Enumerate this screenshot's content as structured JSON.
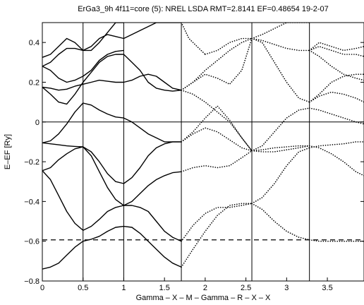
{
  "chart_data": {
    "type": "line",
    "title": "ErGa3_9h 4f11=core (5): NREL LSDA RMT=2.8141  EF=0.48654  19-2-07",
    "xlabel": "Gamma – X – M – Gamma – R – X – X",
    "ylabel": "E–EF [Ry]",
    "xlim": [
      0,
      3.95
    ],
    "ylim": [
      -0.8,
      0.5
    ],
    "xticks": [
      0,
      0.5,
      1,
      1.5,
      2,
      2.5,
      3,
      3.5
    ],
    "xtick_labels": [
      "0",
      "0.5",
      "1",
      "1.5",
      "2",
      "2.5",
      "3",
      "3.5"
    ],
    "yticks": [
      -0.8,
      -0.6,
      -0.4,
      -0.2,
      0,
      0.2,
      0.4
    ],
    "ytick_labels": [
      "−0.8",
      "−0.6",
      "−0.4",
      "−0.2",
      "0",
      "0.2",
      "0.4"
    ],
    "symmetry_lines_x": [
      0.5,
      1.0,
      1.707,
      2.573,
      3.28
    ],
    "fermi_level_y": 0,
    "dashed_level_y": -0.593,
    "grid": false,
    "line_color": "#000000",
    "series": [
      {
        "style": "solid",
        "x": [
          0,
          0.1,
          0.2,
          0.3,
          0.4,
          0.5,
          0.6,
          0.7,
          0.8,
          0.9,
          1.0
        ],
        "values": [
          -0.74,
          -0.73,
          -0.71,
          -0.67,
          -0.63,
          -0.6,
          -0.59,
          -0.575,
          -0.55,
          -0.53,
          -0.525
        ]
      },
      {
        "style": "solid",
        "x": [
          0,
          0.1,
          0.2,
          0.3,
          0.4,
          0.5,
          0.6,
          0.7,
          0.8,
          0.9,
          1.0
        ],
        "values": [
          -0.245,
          -0.29,
          -0.37,
          -0.45,
          -0.51,
          -0.545,
          -0.525,
          -0.49,
          -0.45,
          -0.43,
          -0.42
        ]
      },
      {
        "style": "solid",
        "x": [
          0,
          0.1,
          0.2,
          0.3,
          0.4,
          0.5,
          0.6,
          0.7,
          0.8,
          0.9,
          1.0
        ],
        "values": [
          -0.245,
          -0.23,
          -0.19,
          -0.16,
          -0.135,
          -0.125,
          -0.17,
          -0.25,
          -0.33,
          -0.39,
          -0.42
        ]
      },
      {
        "style": "solid",
        "x": [
          0,
          0.1,
          0.2,
          0.3,
          0.4,
          0.5,
          0.6,
          0.7,
          0.8,
          0.9,
          1.0
        ],
        "values": [
          -0.105,
          -0.11,
          -0.115,
          -0.12,
          -0.123,
          -0.125,
          -0.15,
          -0.2,
          -0.26,
          -0.3,
          -0.31
        ]
      },
      {
        "style": "solid",
        "x": [
          0,
          0.1,
          0.2,
          0.3,
          0.4,
          0.5,
          0.6,
          0.7,
          0.8,
          0.9,
          1.0
        ],
        "values": [
          -0.105,
          -0.095,
          -0.06,
          -0.01,
          0.05,
          0.095,
          0.085,
          0.06,
          0.04,
          0.025,
          0.02
        ]
      },
      {
        "style": "solid",
        "x": [
          0,
          0.1,
          0.2,
          0.3,
          0.4,
          0.5,
          0.6,
          0.7,
          0.8,
          0.9,
          1.0
        ],
        "values": [
          0.175,
          0.17,
          0.16,
          0.165,
          0.18,
          0.19,
          0.2,
          0.21,
          0.205,
          0.2,
          0.2
        ]
      },
      {
        "style": "solid",
        "x": [
          0,
          0.1,
          0.2,
          0.3,
          0.4,
          0.5,
          0.6,
          0.7,
          0.8,
          0.9,
          1.0
        ],
        "values": [
          0.175,
          0.14,
          0.1,
          0.09,
          0.14,
          0.2,
          0.25,
          0.3,
          0.33,
          0.34,
          0.34
        ]
      },
      {
        "style": "solid",
        "x": [
          0,
          0.1,
          0.2,
          0.3,
          0.4,
          0.5,
          0.6,
          0.7,
          0.8,
          0.9,
          1.0
        ],
        "values": [
          0.28,
          0.3,
          0.34,
          0.37,
          0.37,
          0.36,
          0.38,
          0.42,
          0.44,
          0.43,
          0.42
        ]
      },
      {
        "style": "solid",
        "x": [
          0,
          0.1,
          0.2,
          0.3,
          0.4,
          0.5,
          0.6,
          0.7,
          0.8,
          0.9,
          1.0
        ],
        "values": [
          0.325,
          0.34,
          0.38,
          0.42,
          0.4,
          0.36,
          0.36,
          0.4,
          0.45,
          0.5,
          0.5
        ]
      },
      {
        "style": "solid",
        "x": [
          0,
          0.1,
          0.2,
          0.3,
          0.4,
          0.5,
          0.6,
          0.7,
          0.8,
          0.9,
          1.0
        ],
        "values": [
          0.28,
          0.26,
          0.22,
          0.2,
          0.21,
          0.23,
          0.26,
          0.31,
          0.34,
          0.355,
          0.36
        ]
      },
      {
        "style": "solid",
        "x": [
          1.0,
          1.1,
          1.2,
          1.3,
          1.4,
          1.5,
          1.6,
          1.707
        ],
        "values": [
          -0.525,
          -0.53,
          -0.56,
          -0.6,
          -0.64,
          -0.68,
          -0.71,
          -0.73
        ]
      },
      {
        "style": "solid",
        "x": [
          1.0,
          1.1,
          1.2,
          1.3,
          1.4,
          1.5,
          1.6,
          1.707
        ],
        "values": [
          -0.42,
          -0.42,
          -0.43,
          -0.45,
          -0.5,
          -0.55,
          -0.58,
          -0.6
        ]
      },
      {
        "style": "solid",
        "x": [
          1.0,
          1.1,
          1.2,
          1.3,
          1.4,
          1.5,
          1.6,
          1.707
        ],
        "values": [
          -0.42,
          -0.4,
          -0.36,
          -0.32,
          -0.29,
          -0.27,
          -0.255,
          -0.25
        ]
      },
      {
        "style": "solid",
        "x": [
          1.0,
          1.1,
          1.2,
          1.3,
          1.4,
          1.5,
          1.6,
          1.707
        ],
        "values": [
          -0.31,
          -0.28,
          -0.23,
          -0.17,
          -0.13,
          -0.11,
          -0.1,
          -0.1
        ]
      },
      {
        "style": "solid",
        "x": [
          1.0,
          1.1,
          1.2,
          1.3,
          1.4,
          1.5,
          1.6,
          1.707
        ],
        "values": [
          0.02,
          0.0,
          -0.03,
          -0.06,
          -0.08,
          -0.1,
          -0.1,
          -0.1
        ]
      },
      {
        "style": "solid",
        "x": [
          1.0,
          1.1,
          1.2,
          1.3,
          1.4,
          1.5,
          1.6,
          1.707
        ],
        "values": [
          0.2,
          0.21,
          0.23,
          0.24,
          0.23,
          0.2,
          0.17,
          0.16
        ]
      },
      {
        "style": "solid",
        "x": [
          1.0,
          1.1,
          1.2,
          1.3,
          1.4,
          1.5,
          1.6,
          1.707
        ],
        "values": [
          0.34,
          0.3,
          0.26,
          0.2,
          0.17,
          0.16,
          0.155,
          0.16
        ]
      },
      {
        "style": "solid",
        "x": [
          1.0,
          1.1,
          1.2,
          1.3,
          1.4,
          1.5,
          1.6,
          1.707
        ],
        "values": [
          0.42,
          0.44,
          0.46,
          0.48,
          0.5,
          0.5,
          0.5,
          0.5
        ]
      },
      {
        "style": "dotted",
        "x": [
          1.707,
          1.85,
          2.0,
          2.15,
          2.3,
          2.45,
          2.573
        ],
        "values": [
          -0.73,
          -0.64,
          -0.55,
          -0.47,
          -0.42,
          -0.41,
          -0.41
        ]
      },
      {
        "style": "dotted",
        "x": [
          1.707,
          1.85,
          2.0,
          2.15,
          2.3,
          2.45,
          2.573
        ],
        "values": [
          -0.6,
          -0.52,
          -0.46,
          -0.43,
          -0.43,
          -0.42,
          -0.41
        ]
      },
      {
        "style": "dotted",
        "x": [
          1.707,
          1.85,
          2.0,
          2.15,
          2.3,
          2.45,
          2.573
        ],
        "values": [
          -0.25,
          -0.23,
          -0.22,
          -0.23,
          -0.22,
          -0.18,
          -0.145
        ]
      },
      {
        "style": "dotted",
        "x": [
          1.707,
          1.85,
          2.0,
          2.15,
          2.3,
          2.45,
          2.573
        ],
        "values": [
          -0.1,
          -0.06,
          -0.03,
          -0.05,
          -0.09,
          -0.13,
          -0.145
        ]
      },
      {
        "style": "dotted",
        "x": [
          1.707,
          1.85,
          2.0,
          2.15,
          2.3,
          2.45,
          2.573
        ],
        "values": [
          -0.1,
          -0.05,
          0.02,
          0.08,
          0.01,
          -0.08,
          -0.145
        ]
      },
      {
        "style": "dotted",
        "x": [
          1.707,
          1.85,
          2.0,
          2.15,
          2.3,
          2.45,
          2.573
        ],
        "values": [
          0.16,
          0.14,
          0.1,
          0.05,
          0.0,
          -0.08,
          -0.145
        ]
      },
      {
        "style": "dotted",
        "x": [
          1.707,
          1.85,
          2.0,
          2.15,
          2.3,
          2.45,
          2.573
        ],
        "values": [
          0.16,
          0.2,
          0.26,
          0.31,
          0.36,
          0.4,
          0.42
        ]
      },
      {
        "style": "dotted",
        "x": [
          1.707,
          1.85,
          2.0,
          2.15,
          2.3,
          2.45,
          2.573
        ],
        "values": [
          0.16,
          0.2,
          0.24,
          0.22,
          0.19,
          0.26,
          0.42
        ]
      },
      {
        "style": "dotted",
        "x": [
          1.707,
          1.8,
          1.9,
          2.0
        ],
        "values": [
          0.5,
          0.42,
          0.38,
          0.34
        ]
      },
      {
        "style": "dotted",
        "x": [
          2.0,
          2.15,
          2.3,
          2.45,
          2.573
        ],
        "values": [
          0.34,
          0.36,
          0.4,
          0.42,
          0.42
        ]
      },
      {
        "style": "dotted",
        "x": [
          2.573,
          2.7,
          2.85,
          3.0,
          3.15,
          3.28
        ],
        "values": [
          -0.41,
          -0.44,
          -0.5,
          -0.55,
          -0.58,
          -0.593
        ]
      },
      {
        "style": "dotted",
        "x": [
          2.573,
          2.7,
          2.85,
          3.0,
          3.15,
          3.28
        ],
        "values": [
          -0.41,
          -0.38,
          -0.31,
          -0.22,
          -0.15,
          -0.13
        ]
      },
      {
        "style": "dotted",
        "x": [
          2.573,
          2.7,
          2.85,
          3.0,
          3.15,
          3.28
        ],
        "values": [
          -0.145,
          -0.14,
          -0.13,
          -0.125,
          -0.12,
          -0.12
        ]
      },
      {
        "style": "dotted",
        "x": [
          2.573,
          2.7,
          2.85,
          3.0,
          3.15,
          3.28
        ],
        "values": [
          -0.145,
          -0.12,
          -0.05,
          0.02,
          0.06,
          0.07
        ]
      },
      {
        "style": "dotted",
        "x": [
          2.573,
          2.7,
          2.85,
          3.0,
          3.15,
          3.28
        ],
        "values": [
          -0.145,
          -0.15,
          -0.15,
          -0.14,
          -0.13,
          -0.12
        ]
      },
      {
        "style": "dotted",
        "x": [
          2.573,
          2.7,
          2.85,
          3.0,
          3.15,
          3.28
        ],
        "values": [
          0.42,
          0.4,
          0.3,
          0.2,
          0.12,
          0.1
        ]
      },
      {
        "style": "dotted",
        "x": [
          2.573,
          2.7,
          2.85,
          3.0,
          3.15,
          3.28
        ],
        "values": [
          0.42,
          0.41,
          0.39,
          0.37,
          0.36,
          0.36
        ]
      },
      {
        "style": "dotted",
        "x": [
          2.573,
          2.7,
          2.85,
          3.0,
          3.15,
          3.28
        ],
        "values": [
          0.42,
          0.44,
          0.47,
          0.5,
          0.5,
          0.5
        ]
      },
      {
        "style": "dotted",
        "x": [
          3.28,
          3.4,
          3.55,
          3.7,
          3.85,
          3.95
        ],
        "values": [
          -0.593,
          -0.6,
          -0.6,
          -0.6,
          -0.6,
          -0.6
        ]
      },
      {
        "style": "dotted",
        "x": [
          3.28,
          3.4,
          3.55,
          3.7,
          3.85,
          3.95
        ],
        "values": [
          -0.13,
          -0.12,
          -0.115,
          -0.11,
          -0.1,
          -0.1
        ]
      },
      {
        "style": "dotted",
        "x": [
          3.28,
          3.4,
          3.55,
          3.7,
          3.85,
          3.95
        ],
        "values": [
          -0.12,
          -0.13,
          -0.16,
          -0.2,
          -0.25,
          -0.27
        ]
      },
      {
        "style": "dotted",
        "x": [
          3.28,
          3.4,
          3.55,
          3.7,
          3.85,
          3.95
        ],
        "values": [
          0.07,
          0.06,
          0.04,
          0.02,
          0.0,
          -0.01
        ]
      },
      {
        "style": "dotted",
        "x": [
          3.28,
          3.4,
          3.55,
          3.7,
          3.85,
          3.95
        ],
        "values": [
          0.1,
          0.13,
          0.15,
          0.14,
          0.12,
          0.1
        ]
      },
      {
        "style": "dotted",
        "x": [
          3.28,
          3.4,
          3.55,
          3.7,
          3.85,
          3.95
        ],
        "values": [
          0.1,
          0.14,
          0.2,
          0.23,
          0.24,
          0.24
        ]
      },
      {
        "style": "dotted",
        "x": [
          3.28,
          3.4,
          3.55,
          3.7,
          3.85,
          3.95
        ],
        "values": [
          0.36,
          0.33,
          0.28,
          0.24,
          0.22,
          0.21
        ]
      },
      {
        "style": "dotted",
        "x": [
          3.28,
          3.4,
          3.55,
          3.7,
          3.85,
          3.95
        ],
        "values": [
          0.36,
          0.38,
          0.36,
          0.34,
          0.34,
          0.33
        ]
      },
      {
        "style": "dotted",
        "x": [
          3.28,
          3.4,
          3.55,
          3.7,
          3.85,
          3.95
        ],
        "values": [
          0.36,
          0.4,
          0.38,
          0.36,
          0.37,
          0.38
        ]
      }
    ]
  }
}
